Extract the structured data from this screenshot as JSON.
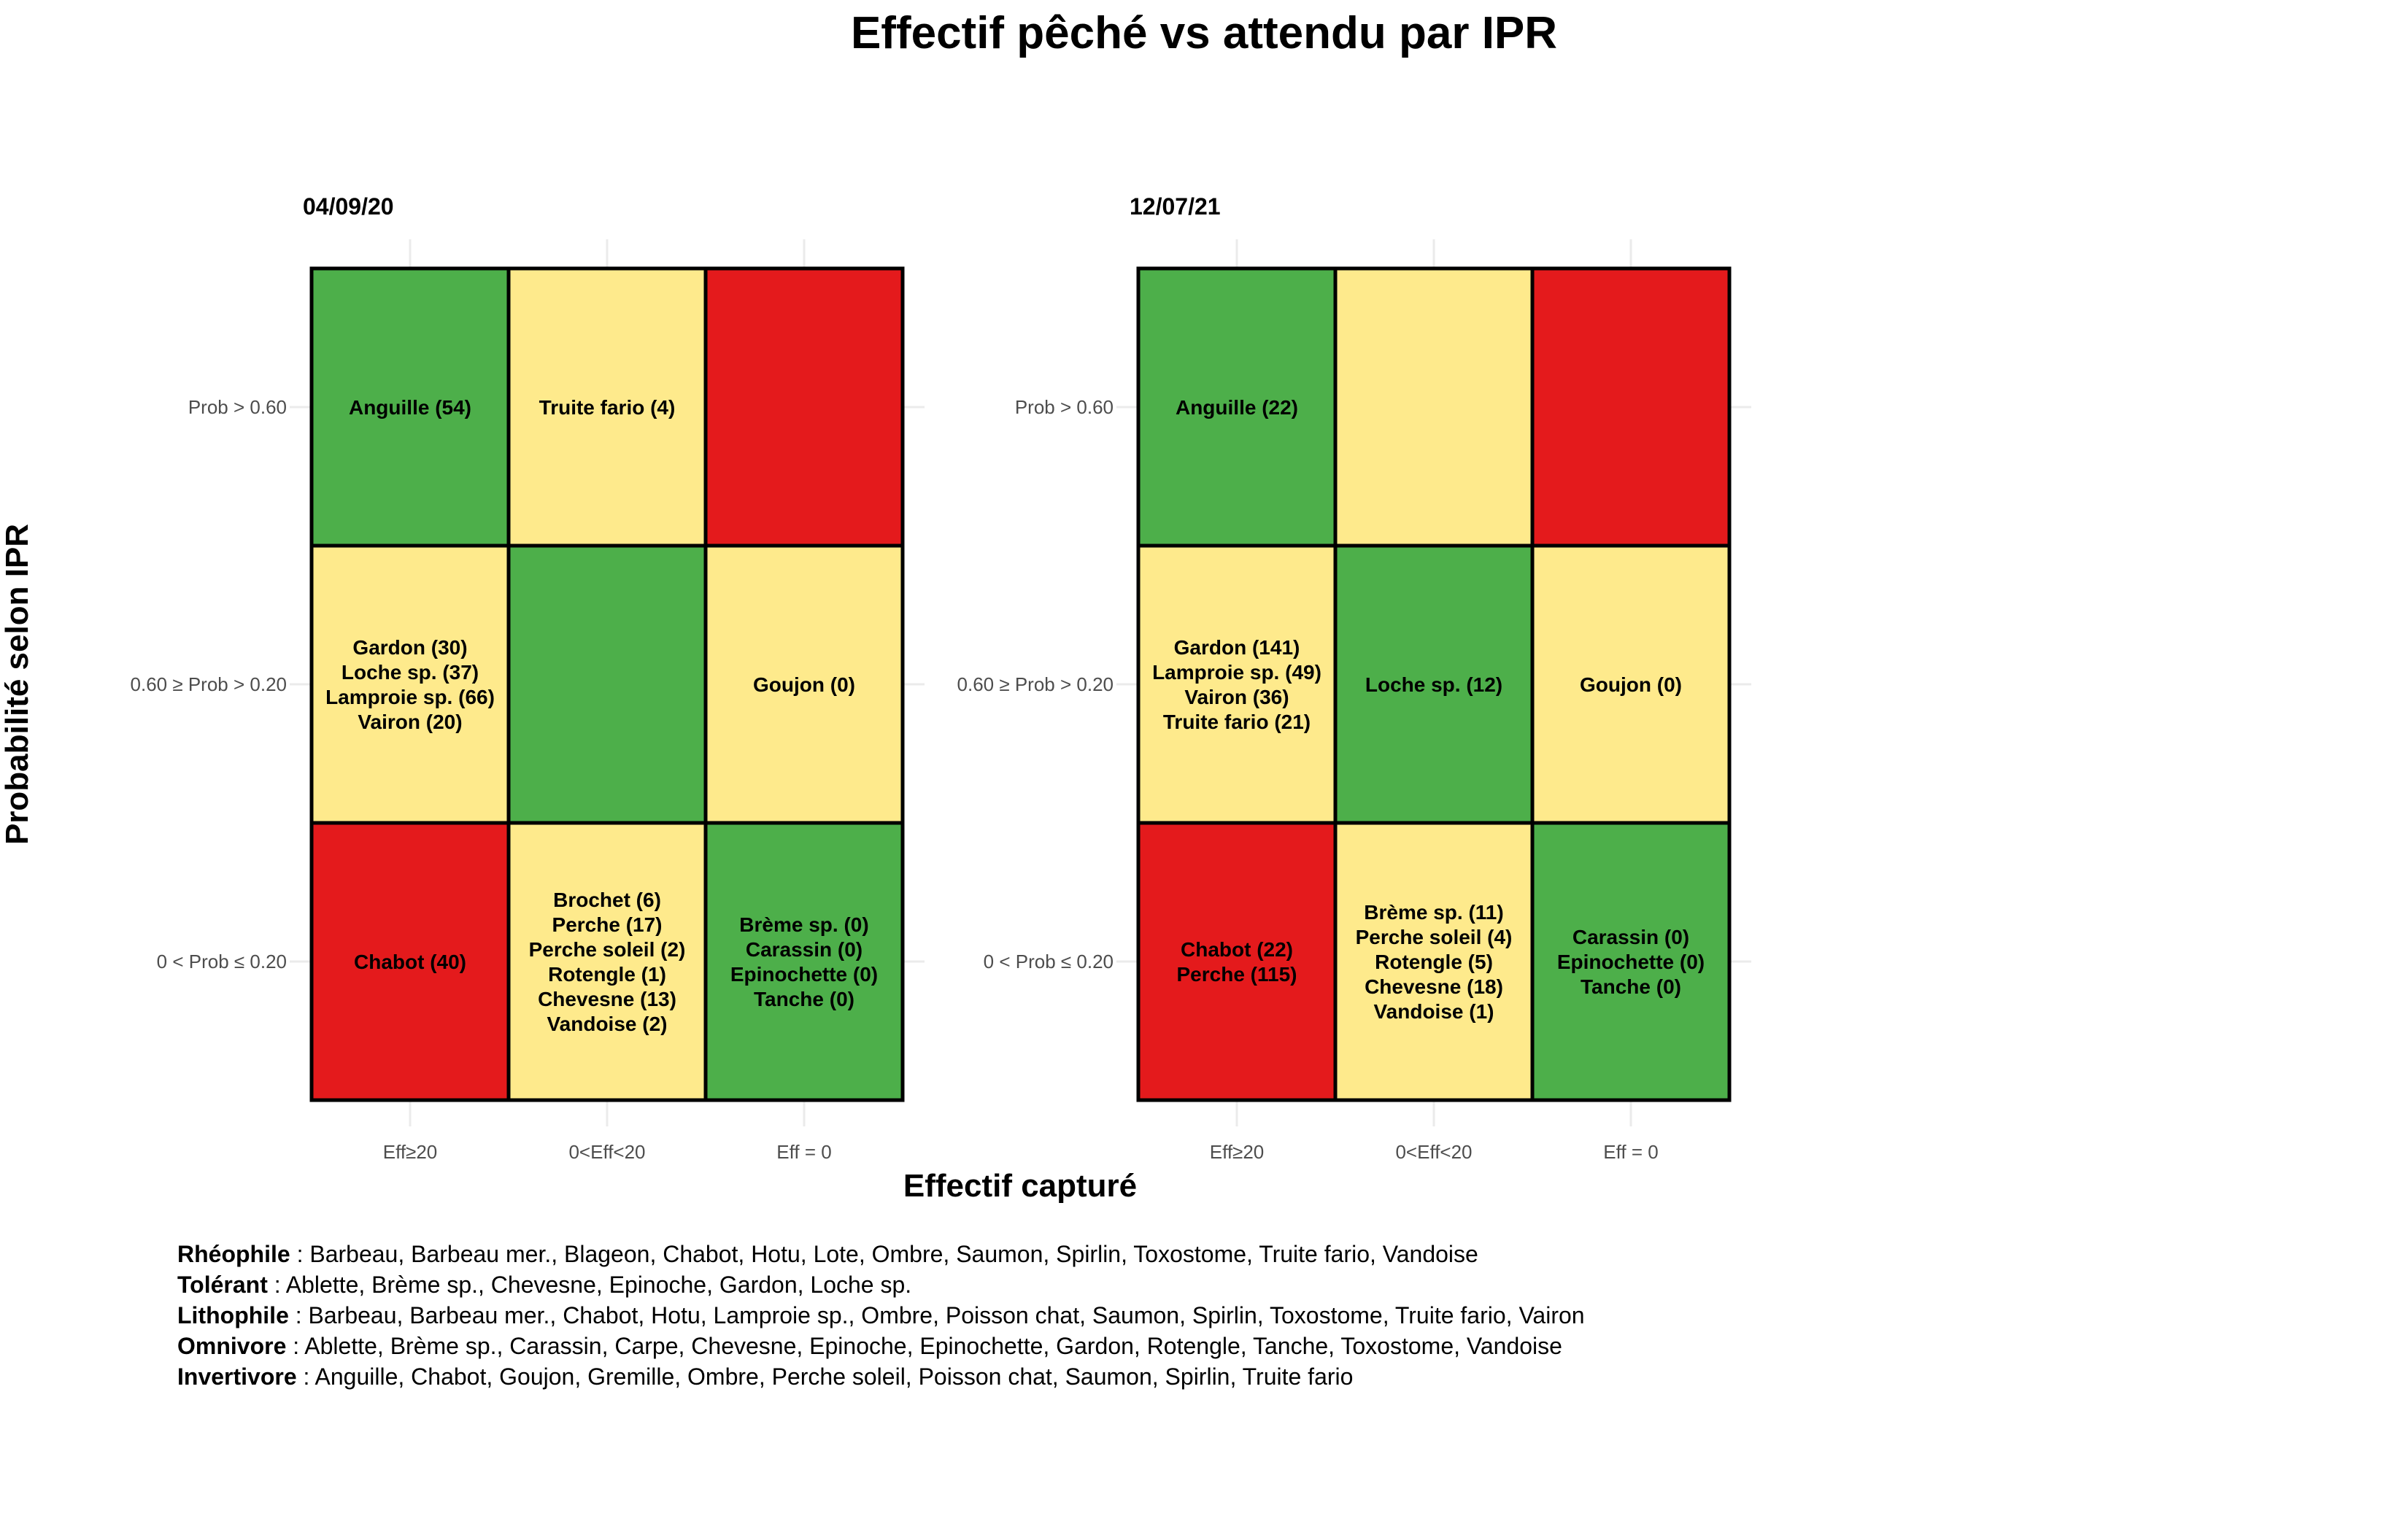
{
  "chart_data": {
    "type": "heatmap",
    "title": "Effectif pêché vs attendu par IPR",
    "xlabel": "Effectif capturé",
    "ylabel": "Probabilité selon IPR",
    "x_categories": [
      "Eff≥20",
      "0<Eff<20",
      "Eff = 0"
    ],
    "y_categories": [
      "Prob > 0.60",
      "0.60 ≥ Prob > 0.20",
      "0 < Prob ≤ 0.20"
    ],
    "colors": {
      "green": "#4DAF4A",
      "yellow": "#FEEA8C",
      "red": "#E41A1C"
    },
    "panels": [
      {
        "label": "04/09/20",
        "cell_colors": [
          [
            "green",
            "yellow",
            "red"
          ],
          [
            "yellow",
            "green",
            "yellow"
          ],
          [
            "red",
            "yellow",
            "green"
          ]
        ],
        "cells": [
          [
            [
              "Anguille (54)"
            ],
            [
              "Truite fario (4)"
            ],
            []
          ],
          [
            [
              "Gardon (30)",
              "Loche sp. (37)",
              "Lamproie sp. (66)",
              "Vairon (20)"
            ],
            [],
            [
              "Goujon (0)"
            ]
          ],
          [
            [
              "Chabot (40)"
            ],
            [
              "Brochet (6)",
              "Perche (17)",
              "Perche soleil (2)",
              "Rotengle (1)",
              "Chevesne (13)",
              "Vandoise (2)"
            ],
            [
              "Brème sp. (0)",
              "Carassin (0)",
              "Epinochette (0)",
              "Tanche (0)"
            ]
          ]
        ]
      },
      {
        "label": "12/07/21",
        "cell_colors": [
          [
            "green",
            "yellow",
            "red"
          ],
          [
            "yellow",
            "green",
            "yellow"
          ],
          [
            "red",
            "yellow",
            "green"
          ]
        ],
        "cells": [
          [
            [
              "Anguille (22)"
            ],
            [],
            []
          ],
          [
            [
              "Gardon (141)",
              "Lamproie sp. (49)",
              "Vairon (36)",
              "Truite fario (21)"
            ],
            [
              "Loche sp. (12)"
            ],
            [
              "Goujon (0)"
            ]
          ],
          [
            [
              "Chabot (22)",
              "Perche (115)"
            ],
            [
              "Brème sp. (11)",
              "Perche soleil (4)",
              "Rotengle (5)",
              "Chevesne (18)",
              "Vandoise (1)"
            ],
            [
              "Carassin (0)",
              "Epinochette (0)",
              "Tanche (0)"
            ]
          ]
        ]
      }
    ],
    "caption_lines": [
      {
        "label": "Rhéophile",
        "text": " : Barbeau, Barbeau mer., Blageon, Chabot, Hotu, Lote, Ombre, Saumon, Spirlin, Toxostome, Truite fario, Vandoise"
      },
      {
        "label": "Tolérant",
        "text": " : Ablette, Brème sp., Chevesne, Epinoche, Gardon, Loche sp."
      },
      {
        "label": "Lithophile",
        "text": " : Barbeau, Barbeau mer., Chabot, Hotu, Lamproie sp., Ombre, Poisson chat, Saumon, Spirlin, Toxostome, Truite fario, Vairon"
      },
      {
        "label": "Omnivore",
        "text": " : Ablette, Brème sp., Carassin, Carpe, Chevesne, Epinoche, Epinochette, Gardon, Rotengle, Tanche, Toxostome, Vandoise"
      },
      {
        "label": "Invertivore",
        "text": " : Anguille, Chabot, Goujon, Gremille, Ombre, Perche soleil, Poisson chat, Saumon, Spirlin, Truite fario"
      }
    ]
  }
}
